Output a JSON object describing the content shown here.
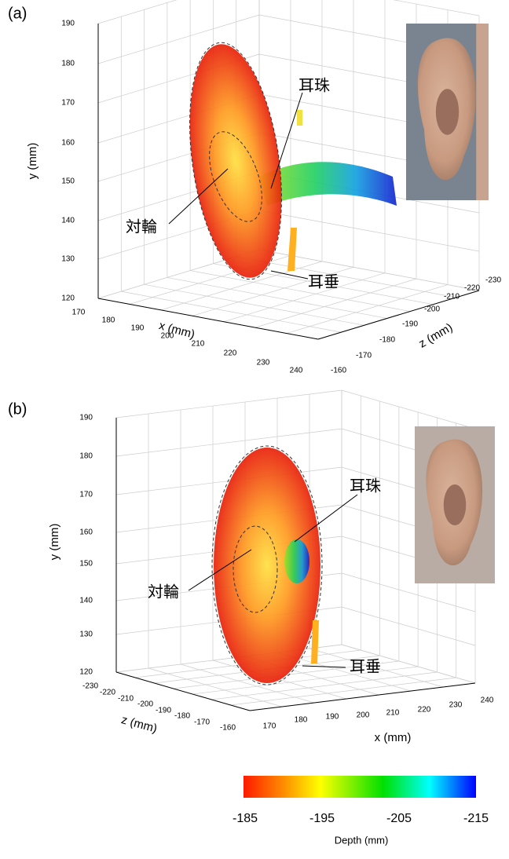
{
  "panels": [
    {
      "label": "(a)",
      "y_axis": {
        "label": "y (mm)",
        "ticks": [
          190,
          180,
          170,
          160,
          150,
          140,
          130,
          120
        ]
      },
      "x_axis": {
        "label": "x (mm)",
        "ticks": [
          170,
          180,
          190,
          200,
          210,
          220,
          230,
          240
        ]
      },
      "z_axis": {
        "label": "z (mm)",
        "ticks": [
          -160,
          -170,
          -180,
          -190,
          -200,
          -210,
          -220,
          -230
        ]
      },
      "annotations": [
        "耳珠",
        "対輪",
        "耳垂"
      ]
    },
    {
      "label": "(b)",
      "y_axis": {
        "label": "y (mm)",
        "ticks": [
          190,
          180,
          170,
          160,
          150,
          140,
          130,
          120
        ]
      },
      "z_axis": {
        "label": "z (mm)",
        "ticks": [
          -230,
          -220,
          -210,
          -200,
          -190,
          -180,
          -170,
          -160
        ]
      },
      "x_axis": {
        "label": "x (mm)",
        "ticks": [
          170,
          180,
          190,
          200,
          210,
          220,
          230,
          240
        ]
      },
      "annotations": [
        "耳珠",
        "対輪",
        "耳垂"
      ]
    }
  ],
  "colorbar": {
    "label": "Depth (mm)",
    "ticks": [
      -185,
      -195,
      -205,
      -215
    ]
  }
}
